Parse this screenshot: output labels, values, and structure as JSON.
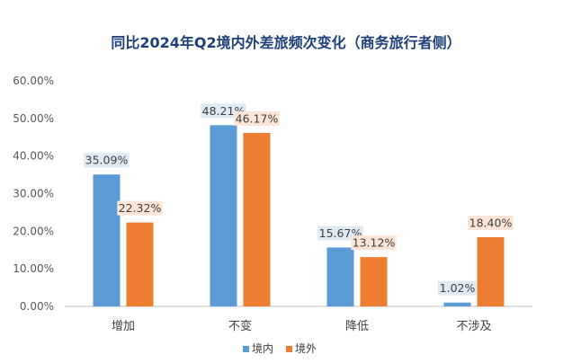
{
  "chart_data": {
    "type": "bar",
    "title": "同比2024年Q2境内外差旅频次变化（商务旅行者侧）",
    "categories": [
      "增加",
      "不变",
      "降低",
      "不涉及"
    ],
    "series": [
      {
        "name": "境内",
        "values": [
          35.09,
          48.21,
          15.67,
          1.02
        ],
        "labels": [
          "35.09%",
          "48.21%",
          "15.67%",
          "1.02%"
        ]
      },
      {
        "name": "境外",
        "values": [
          22.32,
          46.17,
          13.12,
          18.4
        ],
        "labels": [
          "22.32%",
          "46.17%",
          "13.12%",
          "18.40%"
        ]
      }
    ],
    "y_ticks": [
      "0.00%",
      "10.00%",
      "20.00%",
      "30.00%",
      "40.00%",
      "50.00%",
      "60.00%"
    ],
    "ylim": [
      0,
      60
    ],
    "grid": false,
    "legend_position": "bottom",
    "colors": {
      "series": [
        "#5b9bd5",
        "#ed7d31"
      ],
      "label_bg": [
        "#dfeaf5",
        "#fbe5d6"
      ],
      "title": "#1f3f7a",
      "axis_text": "#595959",
      "axis_line": "#bfbfbf"
    }
  }
}
